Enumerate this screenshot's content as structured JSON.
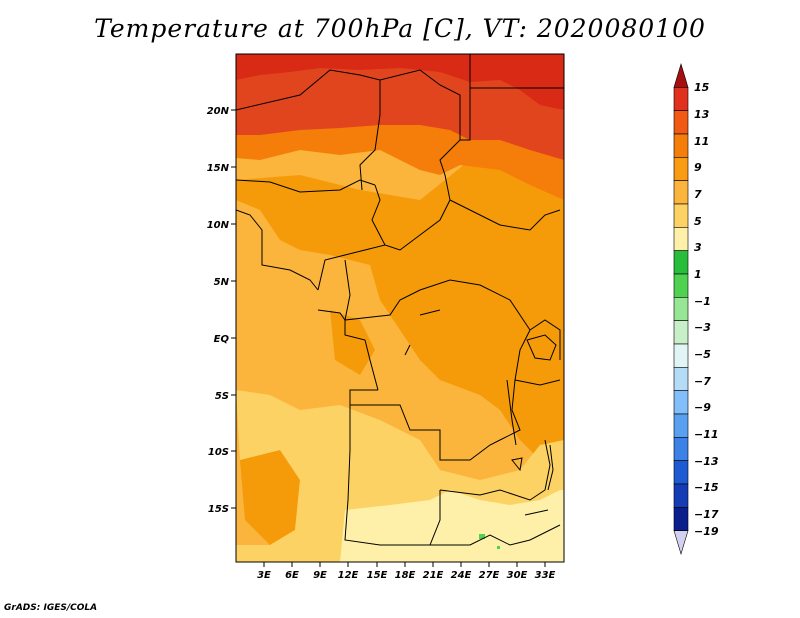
{
  "title": "Temperature at 700hPa [C], VT: 2020080100",
  "credit": "GrADS: IGES/COLA",
  "map": {
    "variable": "Temperature at 700hPa",
    "units": "C",
    "valid_time": "2020080100",
    "lat_labels": [
      "20N",
      "15N",
      "10N",
      "5N",
      "EQ",
      "5S",
      "10S",
      "15S"
    ],
    "lat_values": [
      20,
      15,
      10,
      5,
      0,
      -5,
      -10,
      -15
    ],
    "lon_labels": [
      "3E",
      "6E",
      "9E",
      "12E",
      "15E",
      "18E",
      "21E",
      "24E",
      "27E",
      "30E",
      "33E"
    ],
    "lon_values": [
      3,
      6,
      9,
      12,
      15,
      18,
      21,
      24,
      27,
      30,
      33
    ],
    "lon_range": [
      0,
      35
    ],
    "lat_range": [
      -20,
      25
    ]
  },
  "colorbar": {
    "labels": [
      "15",
      "13",
      "11",
      "9",
      "7",
      "5",
      "3",
      "1",
      "−1",
      "−3",
      "−5",
      "−7",
      "−9",
      "−11",
      "−13",
      "−15",
      "−17",
      "−19"
    ],
    "colors": [
      "#a50f0f",
      "#e0301e",
      "#f05a14",
      "#f57d0a",
      "#fa9b14",
      "#fbb43c",
      "#fcd264",
      "#fef0a8",
      "#28be3c",
      "#50d250",
      "#96e696",
      "#c8f0c8",
      "#e1f5f5",
      "#b4dcf5",
      "#82befa",
      "#5aa0f0",
      "#3c82e6",
      "#1e5ad2",
      "#143cb4",
      "#0a1e8c",
      "#d2d2f0"
    ]
  }
}
